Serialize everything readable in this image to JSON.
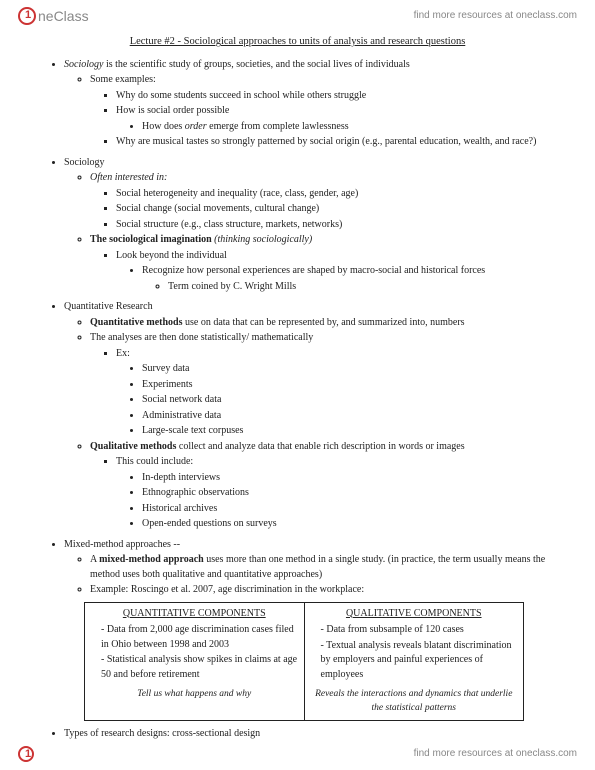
{
  "brand": {
    "name": "neClass",
    "tagline": "find more resources at oneclass.com"
  },
  "title": "Lecture #2 - Sociological approaches to units of analysis and research questions",
  "s1": {
    "lead_em": "Sociology",
    "lead_rest": " is the scientific study of groups, societies, and the social lives of individuals",
    "ex_label": "Some examples:",
    "ex1": "Why do some students succeed in school while others struggle",
    "ex2": "How is social order possible",
    "ex2a_pre": "How does ",
    "ex2a_em": "order",
    "ex2a_post": " emerge from complete lawlessness",
    "ex3": "Why are musical tastes so strongly patterned by social origin (e.g., parental education, wealth, and race?)"
  },
  "s2": {
    "head": "Sociology",
    "often": "Often interested in:",
    "i1": "Social heterogeneity and inequality (race, class, gender, age)",
    "i2": "Social change (social movements, cultural change)",
    "i3": "Social structure (e.g., class structure, markets, networks)",
    "imag_b": "The sociological imagination",
    "imag_em": " (thinking sociologically)",
    "look": "Look beyond the individual",
    "rec": "Recognize how personal experiences are shaped by macro-social and historical forces",
    "term": "Term coined by C. Wright Mills"
  },
  "s3": {
    "head": "Quantitative Research",
    "qm_b": "Quantitative methods",
    "qm_rest": " use on data that can be represented by, and summarized into, numbers",
    "an": "The analyses are then done statistically/ mathematically",
    "exlabel": "Ex:",
    "d1": "Survey data",
    "d2": "Experiments",
    "d3": "Social network data",
    "d4": "Administrative data",
    "d5": "Large-scale text corpuses",
    "ql_b": "Qualitative methods",
    "ql_rest": " collect and analyze data that enable rich description in words or images",
    "inc": "This could include:",
    "q1": "In-depth interviews",
    "q2": "Ethnographic observations",
    "q3": "Historical archives",
    "q4": "Open-ended questions on surveys"
  },
  "s4": {
    "head": "Mixed-method approaches --",
    "mm_pre": "A ",
    "mm_b": "mixed-method approach",
    "mm_rest": " uses more than one method in a single study. (in practice, the term usually means the method uses both qualitative and quantitative approaches)",
    "example": "Example: Roscingo et al. 2007, age discrimination in the workplace:"
  },
  "table": {
    "left_head": "QUANTITATIVE COMPONENTS",
    "l1": "Data from 2,000 age discrimination cases filed in Ohio between 1998 and 2003",
    "l2": "Statistical analysis show spikes in claims at age 50 and before retirement",
    "left_foot": "Tell us what happens and why",
    "right_head": "QUALITATIVE COMPONENTS",
    "r1": "Data from subsample of 120 cases",
    "r2": "Textual analysis reveals blatant discrimination by employers and painful experiences of employees",
    "right_foot": "Reveals the interactions and dynamics that underlie the statistical patterns"
  },
  "s5": {
    "t": "Types of research designs: cross-sectional design"
  }
}
